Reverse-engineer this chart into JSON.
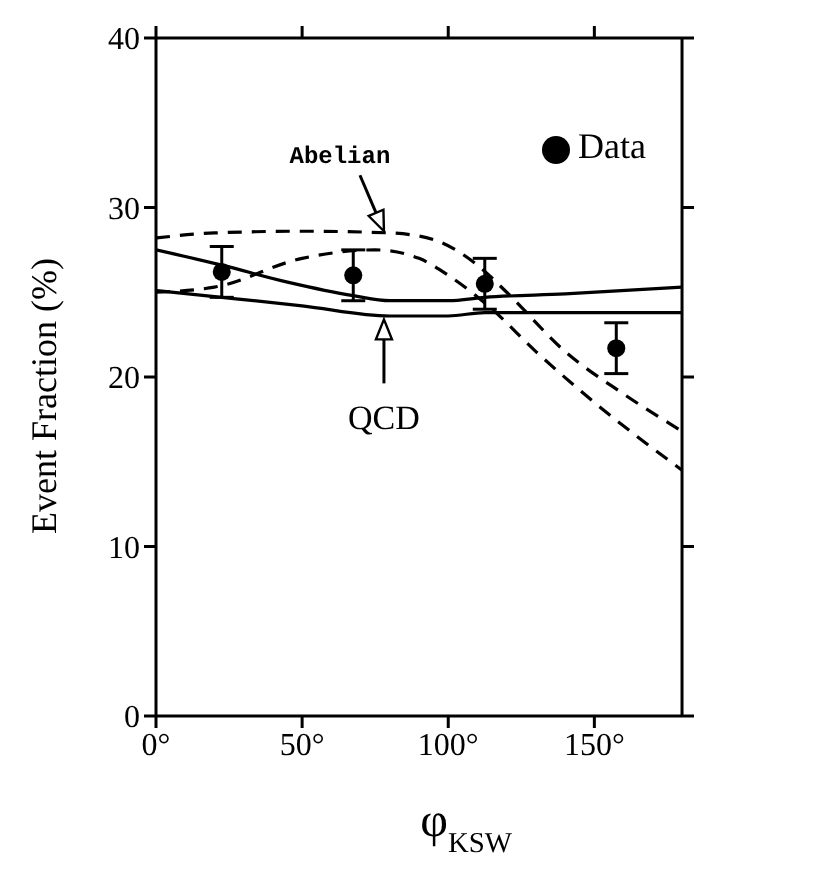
{
  "chart_data": {
    "type": "line",
    "xlabel": "φ$_{KSW}$",
    "ylabel": "Event Fraction (%)",
    "xlim": [
      0,
      180
    ],
    "xticks": [
      {
        "value": 0,
        "label": "0°"
      },
      {
        "value": 50,
        "label": "50°"
      },
      {
        "value": 100,
        "label": "100°"
      },
      {
        "value": 150,
        "label": "150°"
      }
    ],
    "ylim": [
      0,
      40
    ],
    "yticks": [
      0,
      10,
      20,
      30,
      40
    ],
    "grid": false,
    "legend": "top right",
    "series": [
      {
        "name": "Data",
        "type": "scatter",
        "marker": "circle",
        "color": "#000000",
        "x": [
          22.5,
          67.5,
          112.5,
          157.5
        ],
        "values": [
          26.2,
          26.0,
          25.5,
          21.7
        ],
        "errors": [
          1.5,
          1.5,
          1.5,
          1.5
        ]
      },
      {
        "type": "line",
        "line_style": "solid",
        "color": "#000000",
        "x": [
          0,
          22.5,
          45,
          67.5,
          80,
          100,
          112.5,
          140,
          180
        ],
        "values": [
          27.5,
          26.6,
          25.6,
          24.8,
          24.5,
          24.5,
          24.7,
          24.9,
          25.3
        ]
      },
      {
        "type": "line",
        "line_style": "solid",
        "color": "#000000",
        "x": [
          0,
          22.5,
          50,
          80,
          100,
          112.5,
          140,
          180
        ],
        "values": [
          25.1,
          24.7,
          24.2,
          23.6,
          23.6,
          23.8,
          23.8,
          23.8
        ]
      },
      {
        "type": "line",
        "line_style": "dashed",
        "color": "#000000",
        "x": [
          0,
          20,
          50,
          80,
          95,
          110,
          120,
          140,
          160,
          180
        ],
        "values": [
          28.2,
          28.5,
          28.6,
          28.5,
          28.1,
          26.6,
          25.0,
          21.5,
          19.0,
          16.8
        ]
      },
      {
        "type": "line",
        "line_style": "dashed",
        "color": "#000000",
        "x": [
          0,
          20,
          50,
          75,
          90,
          100,
          115,
          130,
          150,
          180
        ],
        "values": [
          25.0,
          25.3,
          27.0,
          27.5,
          27.0,
          26.0,
          24.0,
          21.5,
          18.5,
          14.5
        ]
      }
    ],
    "annotations": [
      {
        "text": "Abelian",
        "x": 78,
        "y": 28.6
      },
      {
        "text": "QCD",
        "x": 78,
        "y": 23.4
      }
    ]
  }
}
